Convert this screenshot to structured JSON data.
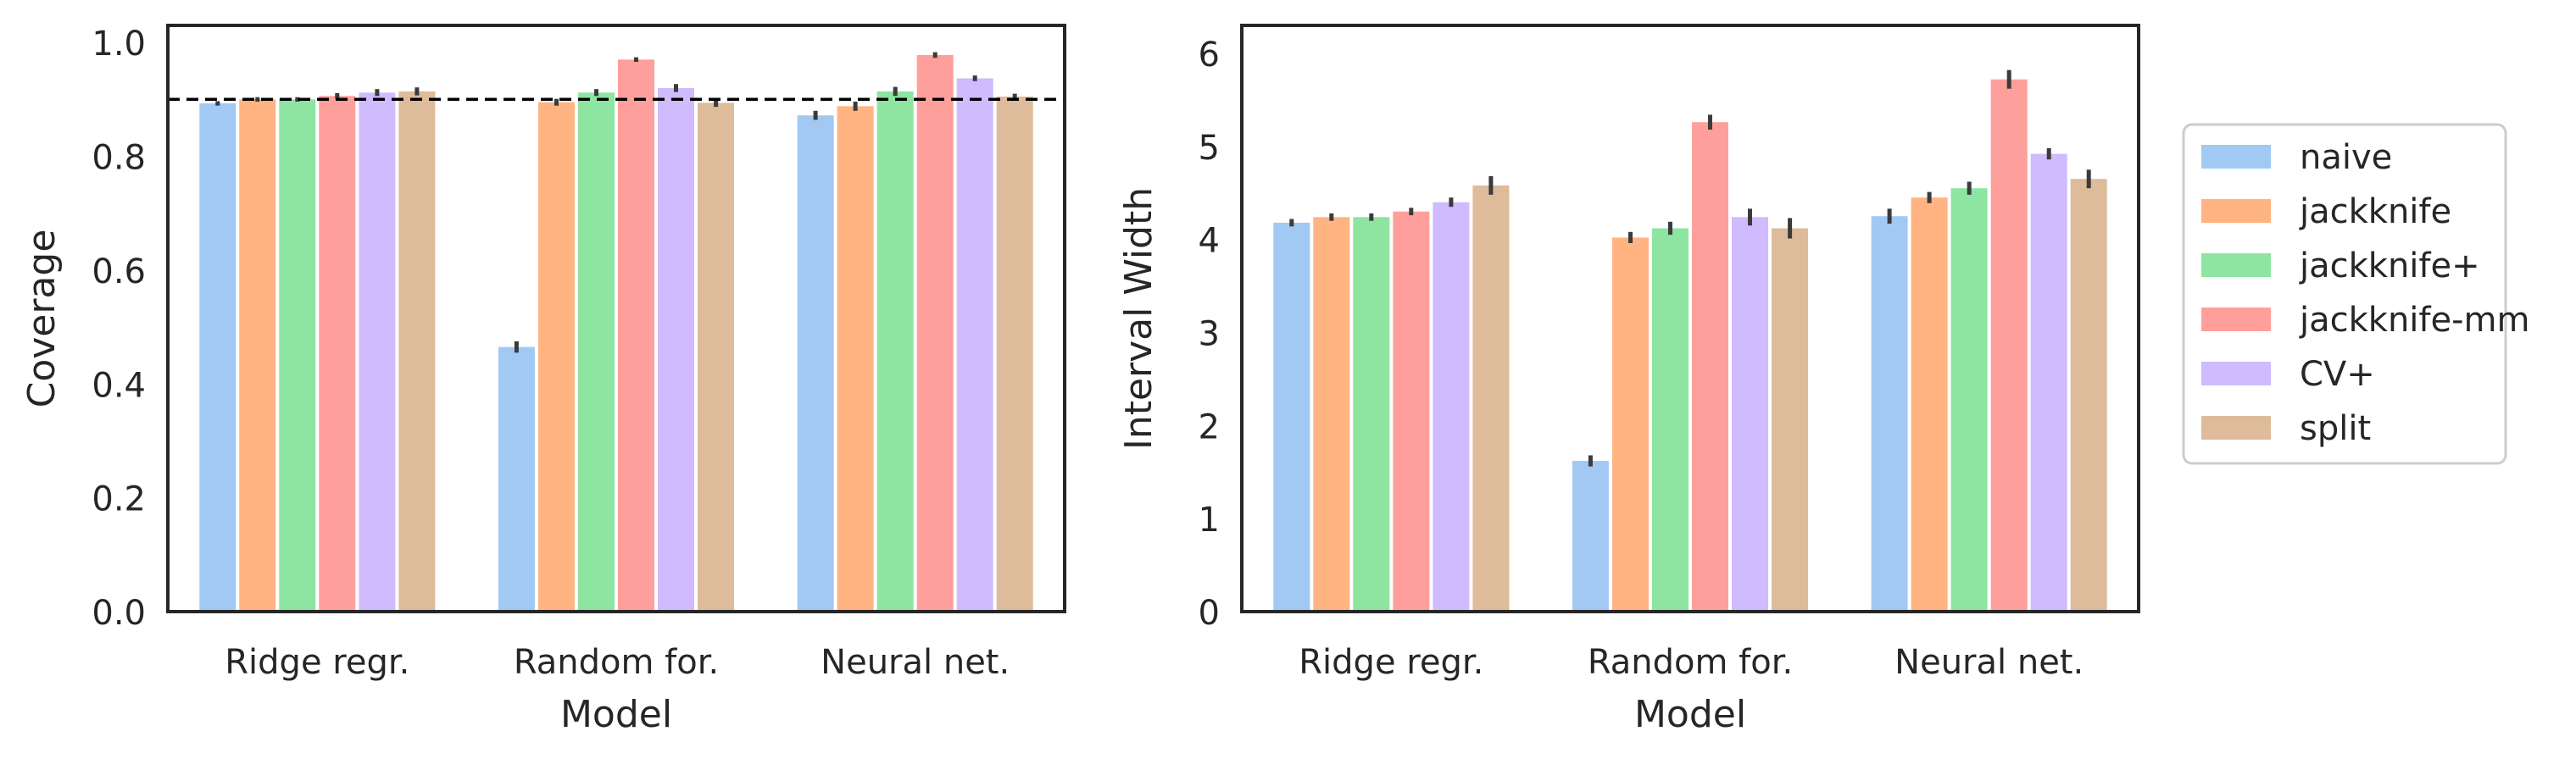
{
  "chart_data": [
    {
      "type": "bar",
      "title": "",
      "xlabel": "Model",
      "ylabel": "Coverage",
      "categories": [
        "Ridge regr.",
        "Random for.",
        "Neural net."
      ],
      "ylim": [
        0,
        1.03
      ],
      "yticks": [
        0.0,
        0.2,
        0.4,
        0.6,
        0.8,
        1.0
      ],
      "ytick_labels": [
        "0.0",
        "0.2",
        "0.4",
        "0.6",
        "0.8",
        "1.0"
      ],
      "reference_line": {
        "y": 0.9,
        "style": "dashed",
        "color": "#000000"
      },
      "grid": false,
      "series": [
        {
          "name": "naive",
          "values": [
            0.893,
            0.465,
            0.872
          ],
          "err": [
            0.004,
            0.01,
            0.008
          ]
        },
        {
          "name": "jackknife",
          "values": [
            0.9,
            0.895,
            0.888
          ],
          "err": [
            0.004,
            0.006,
            0.008
          ]
        },
        {
          "name": "jackknife+",
          "values": [
            0.9,
            0.912,
            0.914
          ],
          "err": [
            0.004,
            0.006,
            0.008
          ]
        },
        {
          "name": "jackknife-mm",
          "values": [
            0.906,
            0.97,
            0.978
          ],
          "err": [
            0.005,
            0.004,
            0.005
          ]
        },
        {
          "name": "CV+",
          "values": [
            0.912,
            0.92,
            0.937
          ],
          "err": [
            0.006,
            0.007,
            0.005
          ]
        },
        {
          "name": "split",
          "values": [
            0.914,
            0.894,
            0.905
          ],
          "err": [
            0.007,
            0.007,
            0.005
          ]
        }
      ]
    },
    {
      "type": "bar",
      "title": "",
      "xlabel": "Model",
      "ylabel": "Interval Width",
      "categories": [
        "Ridge regr.",
        "Random for.",
        "Neural net."
      ],
      "ylim": [
        0,
        6.3
      ],
      "yticks": [
        0,
        1,
        2,
        3,
        4,
        5,
        6
      ],
      "ytick_labels": [
        "0",
        "1",
        "2",
        "3",
        "4",
        "5",
        "6"
      ],
      "grid": false,
      "series": [
        {
          "name": "naive",
          "values": [
            4.18,
            1.62,
            4.25
          ],
          "err": [
            0.04,
            0.06,
            0.08
          ]
        },
        {
          "name": "jackknife",
          "values": [
            4.24,
            4.02,
            4.45
          ],
          "err": [
            0.04,
            0.06,
            0.06
          ]
        },
        {
          "name": "jackknife+",
          "values": [
            4.24,
            4.12,
            4.55
          ],
          "err": [
            0.04,
            0.07,
            0.07
          ]
        },
        {
          "name": "jackknife-mm",
          "values": [
            4.3,
            5.26,
            5.72
          ],
          "err": [
            0.04,
            0.08,
            0.1
          ]
        },
        {
          "name": "CV+",
          "values": [
            4.4,
            4.24,
            4.92
          ],
          "err": [
            0.05,
            0.09,
            0.06
          ]
        },
        {
          "name": "split",
          "values": [
            4.58,
            4.12,
            4.65
          ],
          "err": [
            0.1,
            0.11,
            0.1
          ]
        }
      ]
    }
  ],
  "legend": {
    "placement": "right",
    "entries": [
      "naive",
      "jackknife",
      "jackknife+",
      "jackknife-mm",
      "CV+",
      "split"
    ],
    "colors": [
      "#a1c9f4",
      "#ffb482",
      "#8de5a1",
      "#ff9f9b",
      "#d0bbff",
      "#debb9b"
    ]
  },
  "colors": {
    "naive": "#a1c9f4",
    "jackknife": "#ffb482",
    "jackknife+": "#8de5a1",
    "jackknife-mm": "#ff9f9b",
    "CV+": "#d0bbff",
    "split": "#debb9b",
    "error_bar": "#3b3b3b",
    "axes": "#262626"
  }
}
